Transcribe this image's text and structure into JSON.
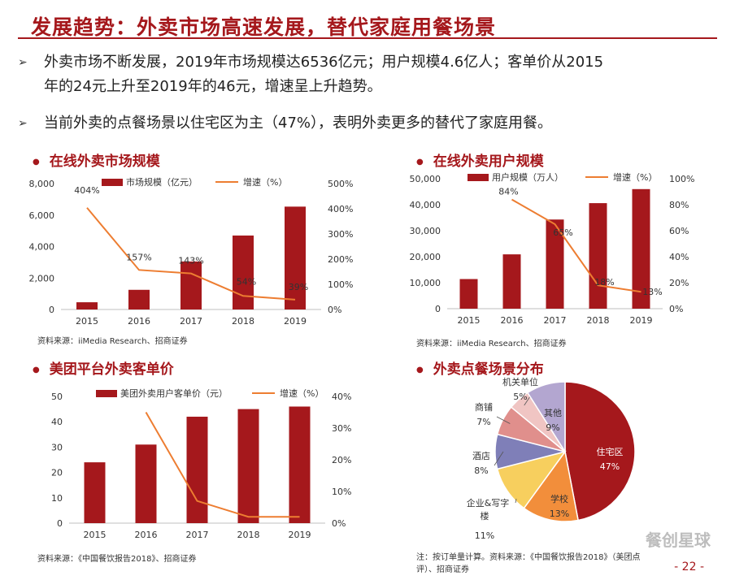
{
  "page": {
    "title": "发展趋势：外卖市场高速发展，替代家庭用餐场景",
    "bullets": [
      {
        "line1": "外卖市场不断发展，2019年市场规模达6536亿元；用户规模4.6亿人；客单价从2015",
        "line2": "年的24元上升至2019年的46元，增速呈上升趋势。"
      },
      {
        "line1": "当前外卖的点餐场景以住宅区为主（47%），表明外卖更多的替代了家庭用餐。",
        "line2": ""
      }
    ],
    "bullet_marker": "➢",
    "page_number": "- 22 -",
    "watermark": "餐创星球"
  },
  "colors": {
    "brand": "#a5181c",
    "bar": "#a5181c",
    "line": "#ed7d31"
  },
  "chart_data": [
    {
      "type": "bar",
      "section_title": "在线外卖市场规模",
      "categories": [
        "2015",
        "2016",
        "2017",
        "2018",
        "2019"
      ],
      "series": [
        {
          "name": "市场规模（亿元）",
          "kind": "bar",
          "axis": "left",
          "values": [
            460,
            1250,
            3050,
            4700,
            6536
          ]
        },
        {
          "name": "增速（%）",
          "kind": "line",
          "axis": "right",
          "values": [
            404,
            157,
            143,
            54,
            39
          ],
          "labels": [
            "404%",
            "157%",
            "143%",
            "54%",
            "39%"
          ]
        }
      ],
      "left_axis": {
        "min": 0,
        "max": 8000,
        "ticks": [
          "0",
          "2,000",
          "4,000",
          "6,000",
          "8,000"
        ]
      },
      "right_axis": {
        "min": 0,
        "max": 500,
        "ticks": [
          "0%",
          "100%",
          "200%",
          "300%",
          "400%",
          "500%"
        ]
      },
      "source": "资料来源：iiMedia Research、招商证券"
    },
    {
      "type": "bar",
      "section_title": "在线外卖用户规模",
      "categories": [
        "2015",
        "2016",
        "2017",
        "2018",
        "2019"
      ],
      "series": [
        {
          "name": "用户规模（万人）",
          "kind": "bar",
          "axis": "left",
          "values": [
            11400,
            20900,
            34300,
            40600,
            46000
          ]
        },
        {
          "name": "增速（%）",
          "kind": "line",
          "axis": "right",
          "values": [
            null,
            84,
            65,
            18,
            13
          ],
          "labels": [
            "",
            "84%",
            "65%",
            "18%",
            "13%"
          ]
        }
      ],
      "left_axis": {
        "min": 0,
        "max": 50000,
        "ticks": [
          "0",
          "10,000",
          "20,000",
          "30,000",
          "40,000",
          "50,000"
        ]
      },
      "right_axis": {
        "min": 0,
        "max": 100,
        "ticks": [
          "0%",
          "20%",
          "40%",
          "60%",
          "80%",
          "100%"
        ]
      },
      "source": "资料来源：iiMedia Research、招商证券"
    },
    {
      "type": "bar",
      "section_title": "美团平台外卖客单价",
      "categories": [
        "2015",
        "2016",
        "2017",
        "2018",
        "2019"
      ],
      "series": [
        {
          "name": "美团外卖用户客单价（元）",
          "kind": "bar",
          "axis": "left",
          "values": [
            24,
            31,
            42,
            45,
            46
          ]
        },
        {
          "name": "增速（%）",
          "kind": "line",
          "axis": "right",
          "values": [
            null,
            35,
            7,
            2,
            2
          ],
          "labels": []
        }
      ],
      "left_axis": {
        "min": 0,
        "max": 50,
        "ticks": [
          "0",
          "10",
          "20",
          "30",
          "40",
          "50"
        ]
      },
      "right_axis": {
        "min": 0,
        "max": 40,
        "ticks": [
          "0%",
          "10%",
          "20%",
          "30%",
          "40%"
        ]
      },
      "source": "资料来源：《中国餐饮报告2018》、招商证券"
    },
    {
      "type": "pie",
      "section_title": "外卖点餐场景分布",
      "slices": [
        {
          "name": "住宅区",
          "value": 47,
          "label": "47%",
          "color": "#a5181c"
        },
        {
          "name": "学校",
          "value": 13,
          "label": "13%",
          "color": "#f28e3b"
        },
        {
          "name": "企业&写字楼",
          "value": 11,
          "label": "11%",
          "color": "#f7cf5e"
        },
        {
          "name": "酒店",
          "value": 8,
          "label": "8%",
          "color": "#7f7fb8"
        },
        {
          "name": "商铺",
          "value": 7,
          "label": "7%",
          "color": "#e08f8c"
        },
        {
          "name": "机关单位",
          "value": 5,
          "label": "5%",
          "color": "#f0c5c3"
        },
        {
          "name": "其他",
          "value": 9,
          "label": "9%",
          "color": "#b3a6d0"
        }
      ],
      "source_line1": "注：按订单量计算。资料来源：《中国餐饮报告2018》（美团点",
      "source_line2": "评）、招商证券"
    }
  ]
}
